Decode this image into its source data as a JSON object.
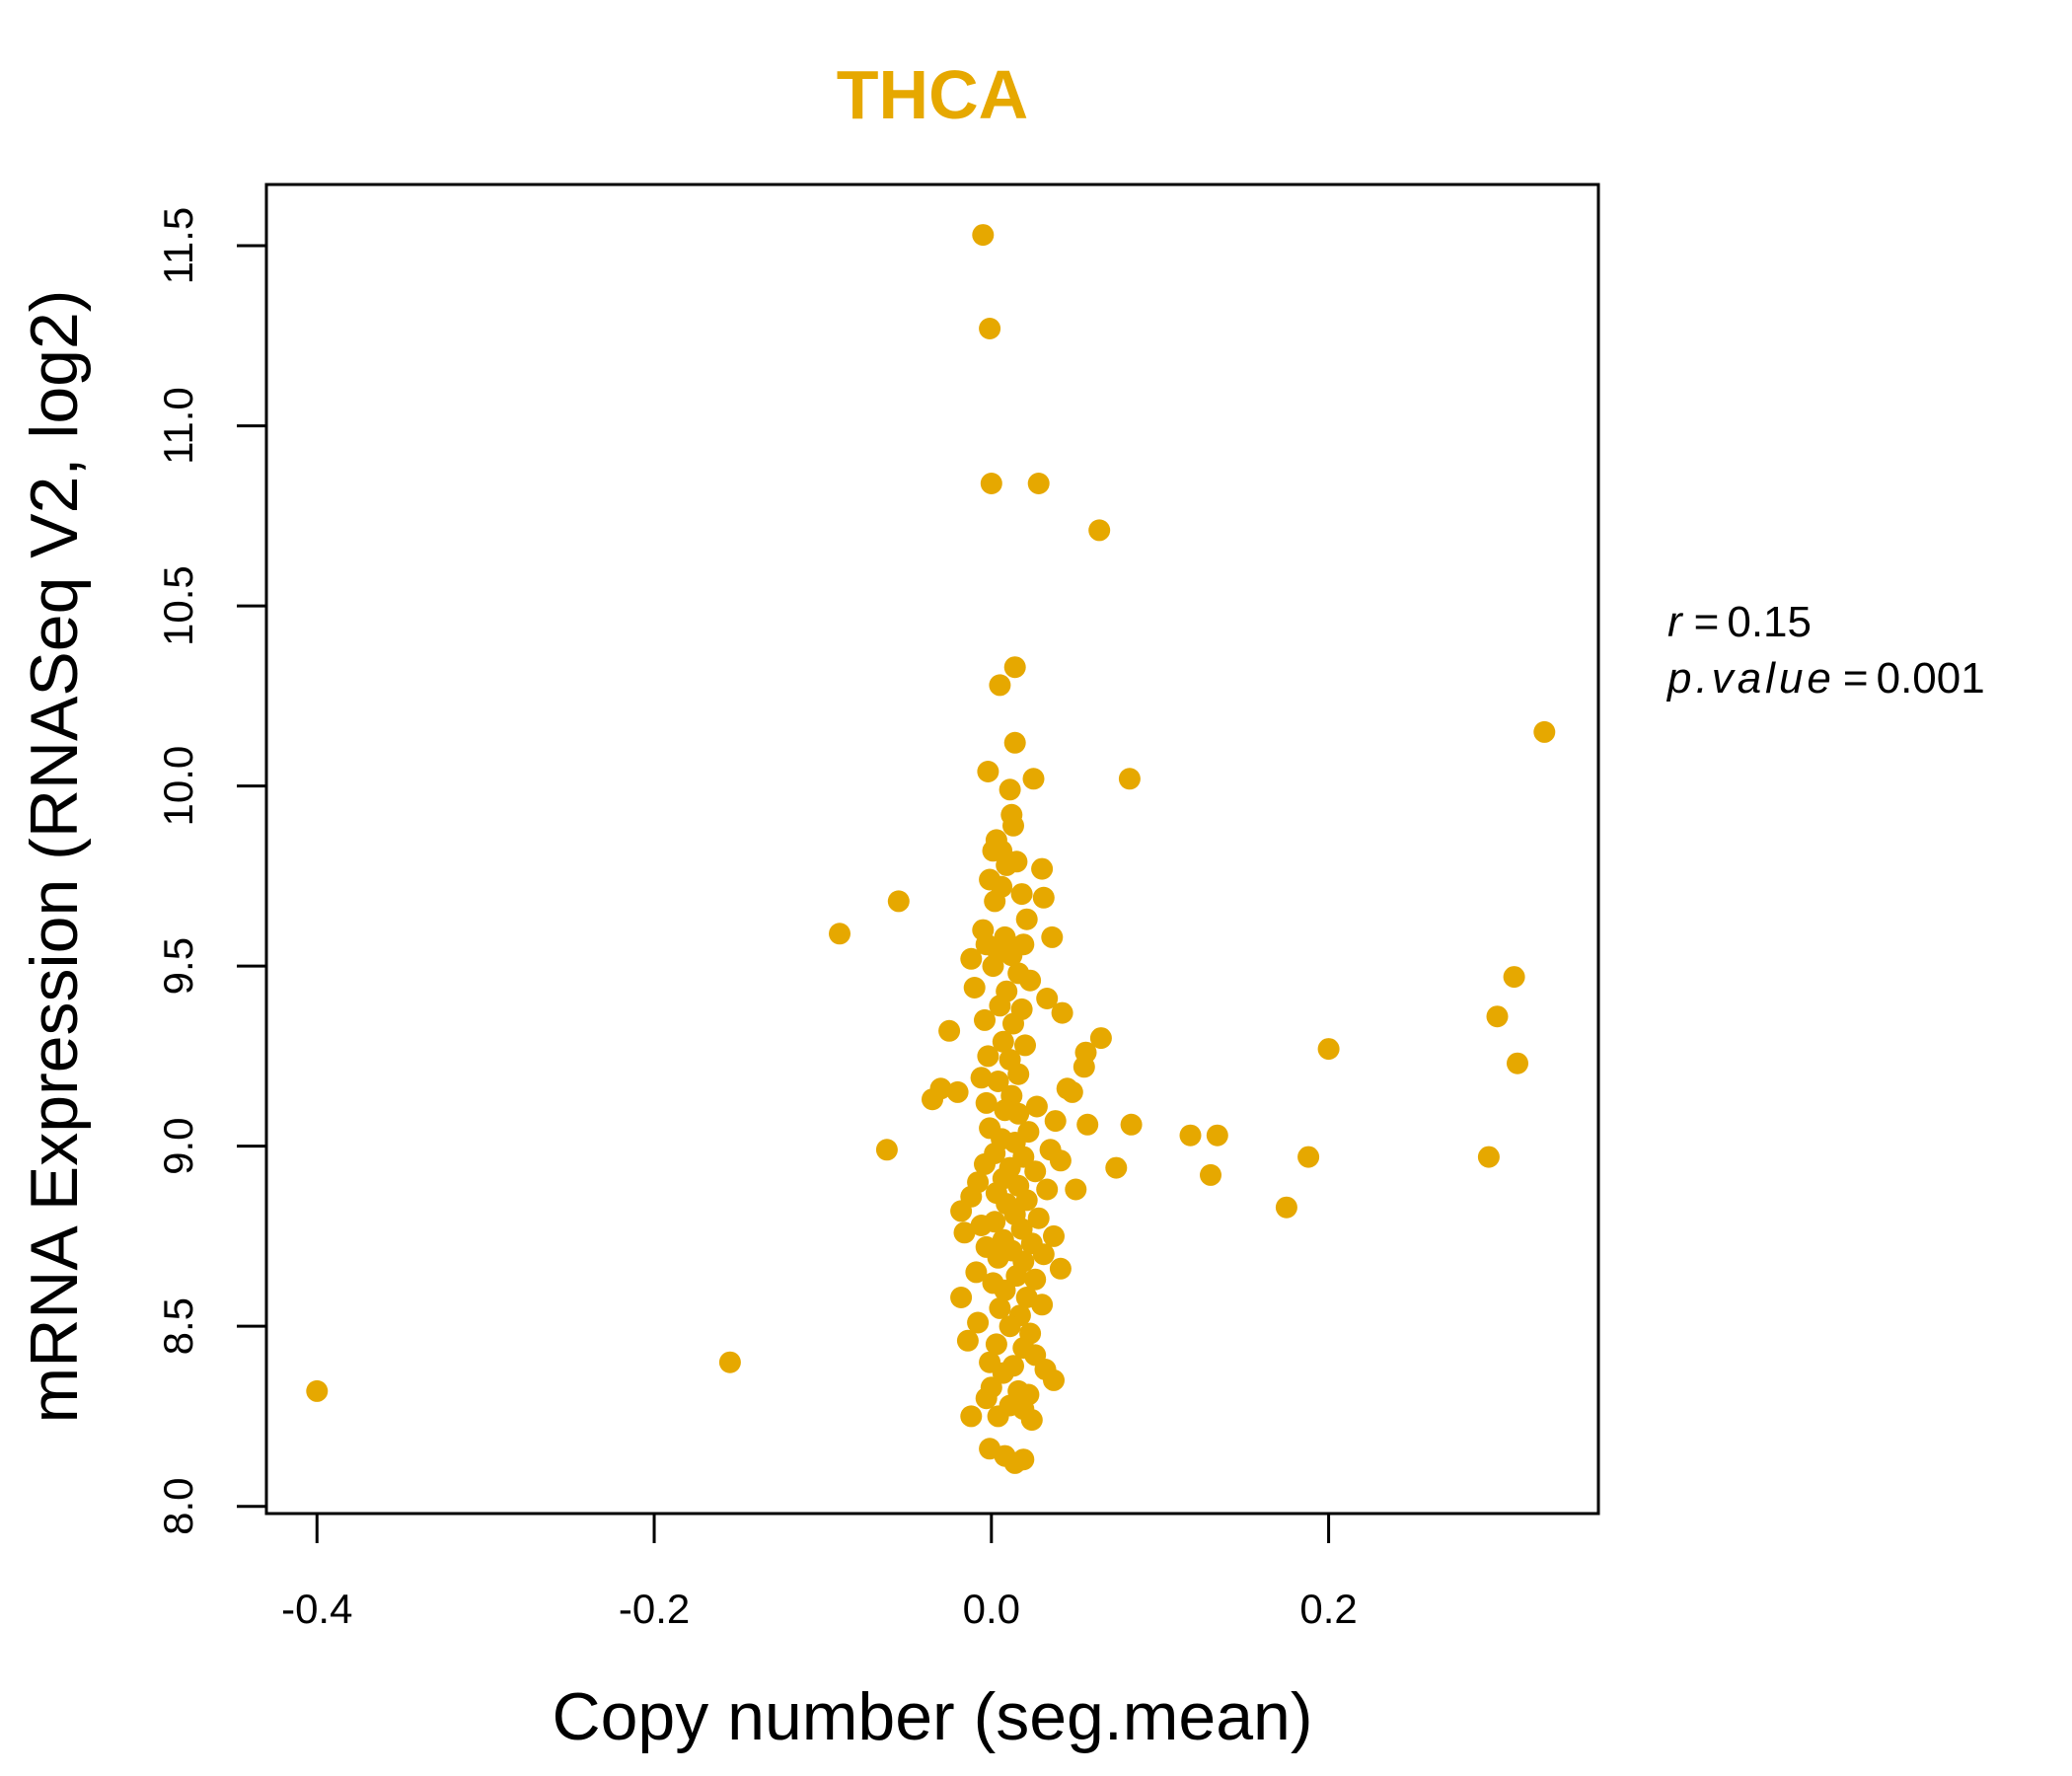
{
  "colors": {
    "accent": "#E6A800",
    "axis": "#000000",
    "background": "#FFFFFF"
  },
  "chart_data": {
    "type": "scatter",
    "title": "THCA",
    "xlabel": "Copy number (seg.mean)",
    "ylabel": "mRNA Expression (RNASeq V2, log2)",
    "xlim": [
      -0.43,
      0.36
    ],
    "ylim": [
      7.98,
      11.67
    ],
    "xticks": [
      -0.4,
      -0.2,
      0.0,
      0.2
    ],
    "xtick_labels": [
      "-0.4",
      "-0.2",
      "0.0",
      "0.2"
    ],
    "yticks": [
      8.0,
      8.5,
      9.0,
      9.5,
      10.0,
      10.5,
      11.0,
      11.5
    ],
    "ytick_labels": [
      "8.0",
      "8.5",
      "9.0",
      "9.5",
      "10.0",
      "10.5",
      "11.0",
      "11.5"
    ],
    "stats": {
      "r_label": "r",
      "r_value": "0.15",
      "p_label": "p.value",
      "p_value": "0.001",
      "equals": "="
    },
    "points": [
      [
        -0.4,
        8.32
      ],
      [
        -0.155,
        8.4
      ],
      [
        -0.09,
        9.59
      ],
      [
        -0.055,
        9.68
      ],
      [
        -0.062,
        8.99
      ],
      [
        -0.005,
        11.53
      ],
      [
        -0.001,
        11.27
      ],
      [
        0.0,
        10.84
      ],
      [
        0.028,
        10.84
      ],
      [
        0.064,
        10.71
      ],
      [
        0.014,
        10.33
      ],
      [
        0.005,
        10.28
      ],
      [
        0.328,
        10.15
      ],
      [
        0.014,
        10.12
      ],
      [
        -0.002,
        10.04
      ],
      [
        0.025,
        10.02
      ],
      [
        0.082,
        10.02
      ],
      [
        0.011,
        9.99
      ],
      [
        0.012,
        9.92
      ],
      [
        0.013,
        9.89
      ],
      [
        0.003,
        9.85
      ],
      [
        0.001,
        9.82
      ],
      [
        0.006,
        9.82
      ],
      [
        0.015,
        9.79
      ],
      [
        0.009,
        9.78
      ],
      [
        0.03,
        9.77
      ],
      [
        -0.001,
        9.74
      ],
      [
        0.006,
        9.72
      ],
      [
        0.018,
        9.7
      ],
      [
        0.031,
        9.69
      ],
      [
        0.002,
        9.68
      ],
      [
        0.021,
        9.63
      ],
      [
        -0.005,
        9.6
      ],
      [
        0.008,
        9.58
      ],
      [
        0.036,
        9.58
      ],
      [
        -0.003,
        9.56
      ],
      [
        0.019,
        9.56
      ],
      [
        0.004,
        9.54
      ],
      [
        0.012,
        9.53
      ],
      [
        -0.012,
        9.52
      ],
      [
        0.001,
        9.5
      ],
      [
        0.016,
        9.48
      ],
      [
        0.023,
        9.46
      ],
      [
        0.31,
        9.47
      ],
      [
        -0.01,
        9.44
      ],
      [
        0.009,
        9.43
      ],
      [
        0.033,
        9.41
      ],
      [
        0.005,
        9.39
      ],
      [
        0.018,
        9.38
      ],
      [
        0.042,
        9.37
      ],
      [
        0.3,
        9.36
      ],
      [
        -0.004,
        9.35
      ],
      [
        0.013,
        9.34
      ],
      [
        -0.025,
        9.32
      ],
      [
        0.065,
        9.3
      ],
      [
        0.007,
        9.29
      ],
      [
        0.02,
        9.28
      ],
      [
        0.2,
        9.27
      ],
      [
        0.056,
        9.26
      ],
      [
        -0.002,
        9.25
      ],
      [
        0.011,
        9.24
      ],
      [
        0.312,
        9.23
      ],
      [
        0.055,
        9.22
      ],
      [
        0.016,
        9.2
      ],
      [
        -0.006,
        9.19
      ],
      [
        0.004,
        9.18
      ],
      [
        0.045,
        9.16
      ],
      [
        -0.03,
        9.16
      ],
      [
        -0.02,
        9.15
      ],
      [
        0.048,
        9.15
      ],
      [
        0.012,
        9.14
      ],
      [
        -0.035,
        9.13
      ],
      [
        -0.003,
        9.12
      ],
      [
        0.027,
        9.11
      ],
      [
        0.008,
        9.1
      ],
      [
        0.016,
        9.09
      ],
      [
        0.038,
        9.07
      ],
      [
        0.057,
        9.06
      ],
      [
        0.083,
        9.06
      ],
      [
        -0.001,
        9.05
      ],
      [
        0.022,
        9.04
      ],
      [
        0.118,
        9.03
      ],
      [
        0.134,
        9.03
      ],
      [
        0.006,
        9.02
      ],
      [
        0.014,
        9.01
      ],
      [
        0.035,
        8.99
      ],
      [
        0.002,
        8.98
      ],
      [
        0.019,
        8.97
      ],
      [
        0.188,
        8.97
      ],
      [
        0.295,
        8.97
      ],
      [
        0.041,
        8.96
      ],
      [
        -0.004,
        8.95
      ],
      [
        0.011,
        8.94
      ],
      [
        0.074,
        8.94
      ],
      [
        0.026,
        8.93
      ],
      [
        0.13,
        8.92
      ],
      [
        0.007,
        8.91
      ],
      [
        -0.008,
        8.9
      ],
      [
        0.016,
        8.89
      ],
      [
        0.033,
        8.88
      ],
      [
        0.05,
        8.88
      ],
      [
        0.003,
        8.87
      ],
      [
        -0.012,
        8.86
      ],
      [
        0.021,
        8.85
      ],
      [
        0.009,
        8.84
      ],
      [
        0.175,
        8.83
      ],
      [
        -0.018,
        8.82
      ],
      [
        0.014,
        8.81
      ],
      [
        0.028,
        8.8
      ],
      [
        0.002,
        8.79
      ],
      [
        -0.006,
        8.78
      ],
      [
        0.018,
        8.77
      ],
      [
        -0.016,
        8.76
      ],
      [
        0.037,
        8.75
      ],
      [
        0.007,
        8.74
      ],
      [
        0.024,
        8.73
      ],
      [
        -0.003,
        8.72
      ],
      [
        0.012,
        8.71
      ],
      [
        0.031,
        8.7
      ],
      [
        0.004,
        8.69
      ],
      [
        0.019,
        8.68
      ],
      [
        0.041,
        8.66
      ],
      [
        -0.009,
        8.65
      ],
      [
        0.015,
        8.64
      ],
      [
        0.026,
        8.63
      ],
      [
        0.001,
        8.62
      ],
      [
        0.008,
        8.6
      ],
      [
        -0.018,
        8.58
      ],
      [
        0.021,
        8.58
      ],
      [
        0.03,
        8.56
      ],
      [
        0.005,
        8.55
      ],
      [
        0.017,
        8.53
      ],
      [
        -0.008,
        8.51
      ],
      [
        0.011,
        8.5
      ],
      [
        0.023,
        8.48
      ],
      [
        -0.014,
        8.46
      ],
      [
        0.003,
        8.45
      ],
      [
        0.019,
        8.44
      ],
      [
        0.026,
        8.42
      ],
      [
        -0.001,
        8.4
      ],
      [
        0.013,
        8.39
      ],
      [
        0.032,
        8.38
      ],
      [
        0.007,
        8.37
      ],
      [
        0.037,
        8.35
      ],
      [
        0.0,
        8.33
      ],
      [
        0.016,
        8.32
      ],
      [
        -0.003,
        8.3
      ],
      [
        0.022,
        8.31
      ],
      [
        0.011,
        8.28
      ],
      [
        0.019,
        8.27
      ],
      [
        -0.012,
        8.25
      ],
      [
        0.004,
        8.25
      ],
      [
        0.024,
        8.24
      ],
      [
        -0.001,
        8.16
      ],
      [
        0.008,
        8.14
      ],
      [
        0.014,
        8.12
      ],
      [
        0.019,
        8.13
      ]
    ]
  }
}
